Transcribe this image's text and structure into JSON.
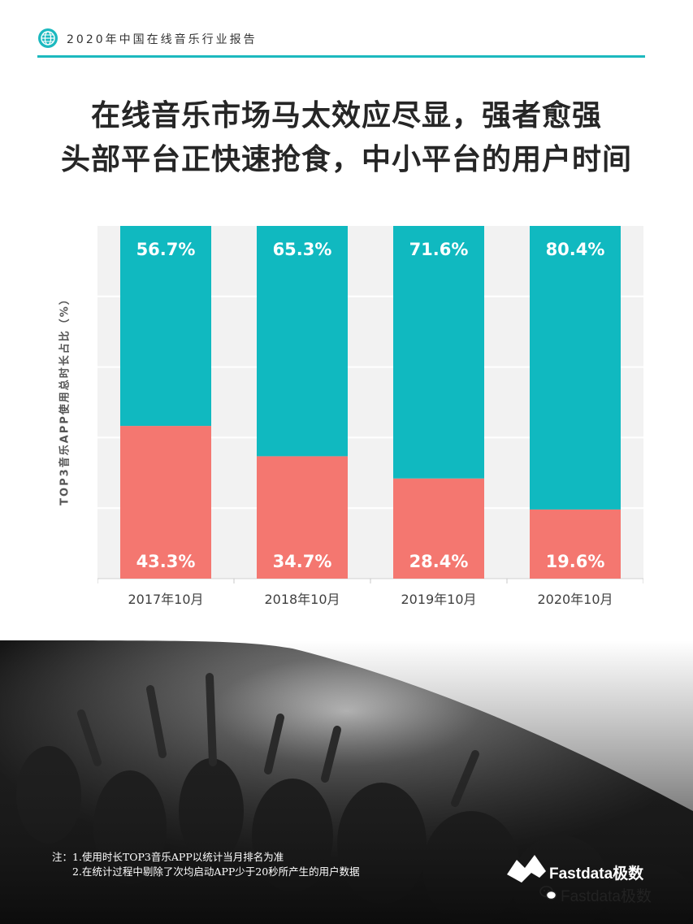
{
  "header": {
    "report_title": "2020年中国在线音乐行业报告"
  },
  "headline": {
    "line1": "在线音乐市场马太效应尽显，强者愈强",
    "line2": "头部平台正快速抢食，中小平台的用户时间"
  },
  "chart_data": {
    "type": "bar",
    "stacked": true,
    "percent_stacked": true,
    "categories": [
      "2017年10月",
      "2018年10月",
      "2019年10月",
      "2020年10月"
    ],
    "series": [
      {
        "values": [
          43.3,
          34.7,
          28.4,
          19.6
        ],
        "labels": [
          "43.3%",
          "34.7%",
          "28.4%",
          "19.6%"
        ],
        "color": "#f47770"
      },
      {
        "values": [
          56.7,
          65.3,
          71.6,
          80.4
        ],
        "labels": [
          "56.7%",
          "65.3%",
          "71.6%",
          "80.4%"
        ],
        "color": "#10b9c0"
      }
    ],
    "ylabel": "TOP3音乐APP使用总时长占比（%）",
    "xlabel": "",
    "ylim": [
      0,
      100
    ],
    "grid": true,
    "legend": "none"
  },
  "footer": {
    "note_line1": "注：1.使用时长TOP3音乐APP以统计当月排名为准",
    "note_line2": "2.在统计过程中剔除了次均启动APP少于20秒所产生的用户数据",
    "brand_logo_text": "Fastdata极数",
    "brand_wechat_text": "Fastdata极数"
  },
  "colors": {
    "accent": "#1cb9bf",
    "teal_bar": "#10b9c0",
    "coral_bar": "#f47770",
    "plot_bg": "#f2f2f2"
  },
  "icons": {
    "header_logo": "globe-icon",
    "wechat": "wechat-icon",
    "brand": "fastdata-logo-icon"
  }
}
